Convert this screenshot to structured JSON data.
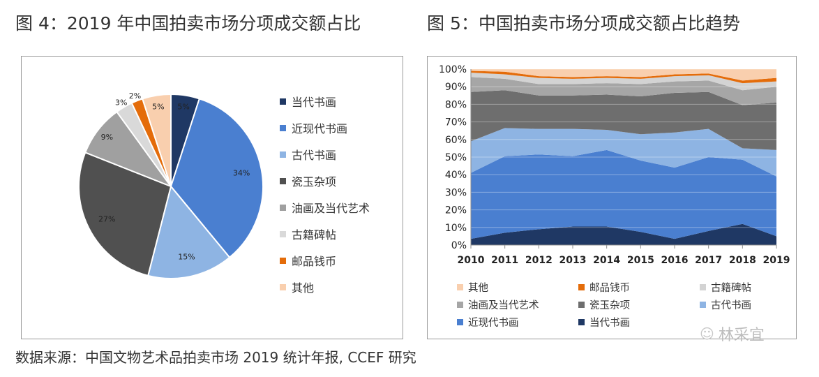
{
  "left_title": "图 4：2019 年中国拍卖市场分项成交额占比",
  "right_title": "图 5：中国拍卖市场分项成交额占比趋势",
  "source": "数据来源：中国文物艺术品拍卖市场 2019 统计年报, CCEF 研究",
  "watermark": "林采宜",
  "watermark_icon": "wechat-icon",
  "chart_data": [
    {
      "type": "pie",
      "title": "图 4：2019 年中国拍卖市场分项成交额占比",
      "legend_position": "right",
      "slices": [
        {
          "name": "当代书画",
          "value": 5,
          "label": "5%",
          "color": "#1f3864"
        },
        {
          "name": "近现代书画",
          "value": 34,
          "label": "34%",
          "color": "#4a7fd0"
        },
        {
          "name": "古代书画",
          "value": 15,
          "label": "15%",
          "color": "#8eb4e3"
        },
        {
          "name": "瓷玉杂项",
          "value": 27,
          "label": "27%",
          "color": "#505050"
        },
        {
          "name": "油画及当代艺术",
          "value": 9,
          "label": "9%",
          "color": "#a0a0a0"
        },
        {
          "name": "古籍碑帖",
          "value": 3,
          "label": "3%",
          "color": "#d9d9d9"
        },
        {
          "name": "邮品钱币",
          "value": 2,
          "label": "2%",
          "color": "#e46c0a"
        },
        {
          "name": "其他",
          "value": 5,
          "label": "5%",
          "color": "#f9cfae"
        }
      ]
    },
    {
      "type": "area",
      "stacked": true,
      "percent": true,
      "title": "图 5：中国拍卖市场分项成交额占比趋势",
      "x": [
        "2010",
        "2011",
        "2012",
        "2013",
        "2014",
        "2015",
        "2016",
        "2017",
        "2018",
        "2019"
      ],
      "ylim": [
        0,
        100
      ],
      "yticks": [
        "0%",
        "10%",
        "20%",
        "30%",
        "40%",
        "50%",
        "60%",
        "70%",
        "80%",
        "90%",
        "100%"
      ],
      "grid": true,
      "legend_position": "bottom",
      "legend_order": [
        "其他",
        "邮品钱币",
        "古籍碑帖",
        "油画及当代艺术",
        "瓷玉杂项",
        "古代书画",
        "近现代书画",
        "当代书画"
      ],
      "series": [
        {
          "name": "当代书画",
          "color": "#1f3864",
          "values": [
            3.5,
            7,
            9,
            10.5,
            10.5,
            7.5,
            3.5,
            8,
            12,
            5
          ]
        },
        {
          "name": "近现代书画",
          "color": "#4a7fd0",
          "values": [
            37.5,
            43.5,
            42.5,
            40,
            43.5,
            40.5,
            40.5,
            42,
            36.5,
            34
          ]
        },
        {
          "name": "古代书画",
          "color": "#8eb4e3",
          "values": [
            18,
            16,
            14.5,
            15.5,
            11.5,
            15,
            20,
            16,
            6.5,
            15
          ]
        },
        {
          "name": "瓷玉杂项",
          "color": "#6e6e6e",
          "values": [
            28,
            21.5,
            19,
            19,
            20,
            21.5,
            22.5,
            21,
            24.5,
            27
          ]
        },
        {
          "name": "油画及当代艺术",
          "color": "#a6a6a6",
          "values": [
            8.5,
            6.5,
            6.5,
            6.5,
            6.5,
            7,
            6.5,
            6.5,
            8.5,
            9
          ]
        },
        {
          "name": "古籍碑帖",
          "color": "#d3d3d3",
          "values": [
            2.5,
            2.5,
            3.5,
            3,
            3,
            3,
            3,
            3,
            4,
            3
          ]
        },
        {
          "name": "邮品钱币",
          "color": "#e46c0a",
          "values": [
            1,
            1.5,
            1,
            1,
            1,
            1,
            1,
            1,
            1.5,
            2
          ]
        },
        {
          "name": "其他",
          "color": "#f9cfae",
          "values": [
            1,
            1.5,
            4,
            4.5,
            4,
            4.5,
            3,
            2.5,
            6.5,
            5
          ]
        }
      ]
    }
  ]
}
